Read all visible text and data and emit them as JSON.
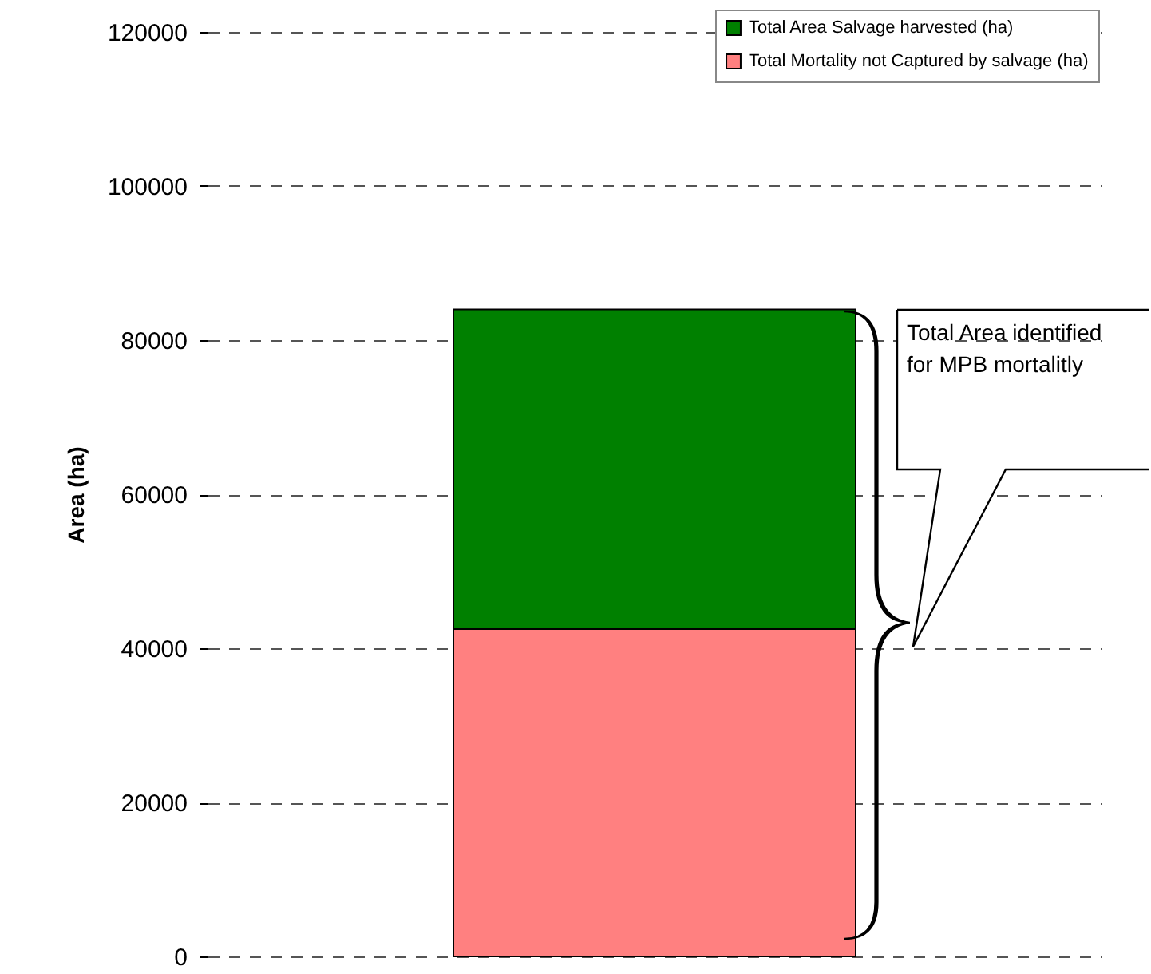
{
  "chart_data": {
    "type": "bar",
    "stacked": true,
    "ylabel": "Area (ha)",
    "categories": [
      null
    ],
    "series": [
      {
        "name": "Total Mortality not Captured by salvage (ha)",
        "color": "#ff8080",
        "values": [
          42500
        ]
      },
      {
        "name": "Total Area Salvage harvested (ha)",
        "color": "#008000",
        "values": [
          41500
        ]
      }
    ],
    "ylim": [
      0,
      120000
    ],
    "yticks": [
      0,
      20000,
      40000,
      60000,
      80000,
      100000,
      120000
    ],
    "grid": "y",
    "legend": "top right",
    "annotations": [
      "Total Area identified for MPB mortalitly"
    ]
  }
}
